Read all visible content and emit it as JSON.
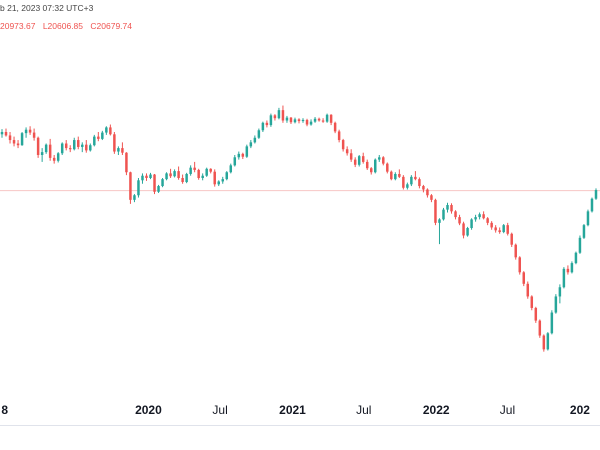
{
  "header": {
    "time_label": "b 21, 2023 07:32 UTC+3",
    "values": [
      "20973.67",
      "L20606.85",
      "C20679.74"
    ]
  },
  "colors": {
    "up": "#26a69a",
    "down": "#ef5350",
    "price_line": "#f7c6c5",
    "axis_text": "#131722",
    "background": "#ffffff"
  },
  "chart_data": {
    "type": "candlestick",
    "title": "",
    "xlabel": "",
    "ylabel": "",
    "x_ticks": [
      {
        "label": "8",
        "date": "2019-01-01",
        "bold": true
      },
      {
        "label": "2020",
        "date": "2020-01-01",
        "bold": true
      },
      {
        "label": "Jul",
        "date": "2020-07-01",
        "bold": false
      },
      {
        "label": "2021",
        "date": "2021-01-01",
        "bold": true
      },
      {
        "label": "Jul",
        "date": "2021-07-01",
        "bold": false
      },
      {
        "label": "2022",
        "date": "2022-01-01",
        "bold": true
      },
      {
        "label": "Jul",
        "date": "2022-07-01",
        "bold": false
      },
      {
        "label": "202",
        "date": "2023-01-01",
        "bold": true
      }
    ],
    "price_line": 20679.74,
    "ylim": [
      17300,
      23300
    ],
    "grid": false,
    "series": [
      {
        "values": [
          [
            21660,
            21750,
            21600,
            21700
          ],
          [
            21700,
            21760,
            21620,
            21640
          ],
          [
            21640,
            21700,
            21500,
            21560
          ],
          [
            21560,
            21620,
            21450,
            21500
          ],
          [
            21500,
            21560,
            21420,
            21470
          ],
          [
            21470,
            21700,
            21460,
            21680
          ],
          [
            21680,
            21780,
            21600,
            21740
          ],
          [
            21740,
            21800,
            21650,
            21690
          ],
          [
            21690,
            21760,
            21550,
            21600
          ],
          [
            21600,
            21620,
            21250,
            21300
          ],
          [
            21300,
            21420,
            21180,
            21350
          ],
          [
            21350,
            21500,
            21320,
            21480
          ],
          [
            21480,
            21580,
            21200,
            21250
          ],
          [
            21250,
            21300,
            21150,
            21200
          ],
          [
            21200,
            21350,
            21170,
            21330
          ],
          [
            21330,
            21520,
            21300,
            21500
          ],
          [
            21500,
            21560,
            21380,
            21420
          ],
          [
            21420,
            21470,
            21350,
            21400
          ],
          [
            21400,
            21600,
            21380,
            21560
          ],
          [
            21560,
            21620,
            21400,
            21440
          ],
          [
            21440,
            21520,
            21350,
            21480
          ],
          [
            21480,
            21560,
            21340,
            21380
          ],
          [
            21380,
            21500,
            21360,
            21470
          ],
          [
            21470,
            21650,
            21450,
            21620
          ],
          [
            21620,
            21700,
            21540,
            21580
          ],
          [
            21580,
            21720,
            21560,
            21690
          ],
          [
            21690,
            21800,
            21650,
            21780
          ],
          [
            21780,
            21830,
            21640,
            21660
          ],
          [
            21660,
            21700,
            21320,
            21360
          ],
          [
            21360,
            21450,
            21300,
            21420
          ],
          [
            21420,
            21520,
            21300,
            21340
          ],
          [
            21340,
            21350,
            20950,
            21000
          ],
          [
            21000,
            21010,
            20450,
            20520
          ],
          [
            20520,
            20620,
            20480,
            20600
          ],
          [
            20600,
            20900,
            20560,
            20860
          ],
          [
            20860,
            20980,
            20800,
            20940
          ],
          [
            20940,
            20980,
            20850,
            20900
          ],
          [
            20900,
            20990,
            20880,
            20960
          ],
          [
            20960,
            20970,
            20620,
            20660
          ],
          [
            20660,
            20780,
            20640,
            20760
          ],
          [
            20760,
            20900,
            20740,
            20880
          ],
          [
            20880,
            21000,
            20860,
            20980
          ],
          [
            20980,
            21060,
            20900,
            20930
          ],
          [
            20930,
            21050,
            20910,
            21020
          ],
          [
            21020,
            21100,
            20870,
            20900
          ],
          [
            20900,
            20960,
            20800,
            20830
          ],
          [
            20830,
            20990,
            20810,
            20970
          ],
          [
            20970,
            21120,
            20940,
            21080
          ],
          [
            21080,
            21180,
            21000,
            21040
          ],
          [
            21040,
            21060,
            20870,
            20900
          ],
          [
            20900,
            20980,
            20860,
            20940
          ],
          [
            20940,
            21080,
            20920,
            21060
          ],
          [
            21060,
            21070,
            20980,
            21010
          ],
          [
            21010,
            21050,
            20750,
            20790
          ],
          [
            20790,
            20860,
            20760,
            20840
          ],
          [
            20840,
            20920,
            20800,
            20880
          ],
          [
            20880,
            21020,
            20860,
            21000
          ],
          [
            21000,
            21150,
            20980,
            21120
          ],
          [
            21120,
            21300,
            21100,
            21260
          ],
          [
            21260,
            21360,
            21220,
            21320
          ],
          [
            21320,
            21340,
            21230,
            21270
          ],
          [
            21270,
            21480,
            21250,
            21450
          ],
          [
            21450,
            21560,
            21420,
            21520
          ],
          [
            21520,
            21640,
            21500,
            21600
          ],
          [
            21600,
            21760,
            21580,
            21730
          ],
          [
            21730,
            21880,
            21700,
            21860
          ],
          [
            21860,
            21900,
            21780,
            21820
          ],
          [
            21820,
            22020,
            21790,
            21990
          ],
          [
            21990,
            22010,
            21900,
            21940
          ],
          [
            21940,
            22120,
            21920,
            22080
          ],
          [
            22080,
            22160,
            21860,
            21900
          ],
          [
            21900,
            21980,
            21860,
            21950
          ],
          [
            21950,
            21960,
            21840,
            21870
          ],
          [
            21870,
            21950,
            21850,
            21920
          ],
          [
            21920,
            21940,
            21850,
            21890
          ],
          [
            21890,
            21940,
            21860,
            21910
          ],
          [
            21910,
            21930,
            21800,
            21830
          ],
          [
            21830,
            21920,
            21810,
            21880
          ],
          [
            21880,
            21960,
            21860,
            21930
          ],
          [
            21930,
            21950,
            21880,
            21900
          ],
          [
            21900,
            21940,
            21860,
            21880
          ],
          [
            21880,
            22020,
            21860,
            22000
          ],
          [
            22000,
            22010,
            21820,
            21860
          ],
          [
            21860,
            21880,
            21680,
            21710
          ],
          [
            21710,
            21740,
            21520,
            21560
          ],
          [
            21560,
            21580,
            21360,
            21400
          ],
          [
            21400,
            21450,
            21290,
            21330
          ],
          [
            21330,
            21400,
            21180,
            21220
          ],
          [
            21220,
            21260,
            21090,
            21130
          ],
          [
            21130,
            21300,
            21100,
            21280
          ],
          [
            21280,
            21340,
            21150,
            21180
          ],
          [
            21180,
            21220,
            21040,
            21070
          ],
          [
            21070,
            21090,
            20960,
            21000
          ],
          [
            21000,
            21240,
            20980,
            21220
          ],
          [
            21220,
            21300,
            21180,
            21260
          ],
          [
            21260,
            21280,
            21120,
            21150
          ],
          [
            21150,
            21170,
            20980,
            21010
          ],
          [
            21010,
            21030,
            20860,
            20880
          ],
          [
            20880,
            21000,
            20860,
            20970
          ],
          [
            20970,
            21050,
            20900,
            20920
          ],
          [
            20920,
            20950,
            20700,
            20730
          ],
          [
            20730,
            20820,
            20700,
            20790
          ],
          [
            20790,
            20950,
            20760,
            20920
          ],
          [
            20920,
            21020,
            20860,
            20880
          ],
          [
            20880,
            20910,
            20720,
            20760
          ],
          [
            20760,
            20780,
            20650,
            20700
          ],
          [
            20700,
            20720,
            20560,
            20600
          ],
          [
            20600,
            20620,
            20480,
            20520
          ],
          [
            20520,
            20540,
            20080,
            20120
          ],
          [
            20120,
            20200,
            19750,
            20180
          ],
          [
            20180,
            20380,
            20160,
            20350
          ],
          [
            20350,
            20470,
            20300,
            20430
          ],
          [
            20430,
            20460,
            20280,
            20320
          ],
          [
            20320,
            20340,
            20180,
            20220
          ],
          [
            20220,
            20260,
            20080,
            20110
          ],
          [
            20110,
            20140,
            19850,
            19900
          ],
          [
            19900,
            20050,
            19880,
            20030
          ],
          [
            20030,
            20200,
            20000,
            20180
          ],
          [
            20180,
            20260,
            20140,
            20220
          ],
          [
            20220,
            20300,
            20180,
            20270
          ],
          [
            20270,
            20320,
            20180,
            20200
          ],
          [
            20200,
            20220,
            20080,
            20120
          ],
          [
            20120,
            20150,
            20000,
            20040
          ],
          [
            20040,
            20080,
            19950,
            19990
          ],
          [
            19990,
            20040,
            19930,
            19960
          ],
          [
            19960,
            20100,
            19940,
            20080
          ],
          [
            20080,
            20120,
            19900,
            19930
          ],
          [
            19930,
            19950,
            19700,
            19740
          ],
          [
            19740,
            19760,
            19480,
            19520
          ],
          [
            19520,
            19540,
            19220,
            19260
          ],
          [
            19260,
            19280,
            19020,
            19060
          ],
          [
            19060,
            19100,
            18800,
            18840
          ],
          [
            18840,
            18860,
            18600,
            18640
          ],
          [
            18640,
            18660,
            18380,
            18420
          ],
          [
            18420,
            18440,
            18120,
            18160
          ],
          [
            18160,
            18180,
            17880,
            17920
          ],
          [
            17920,
            18220,
            17900,
            18200
          ],
          [
            18200,
            18600,
            18180,
            18560
          ],
          [
            18560,
            18880,
            18540,
            18840
          ],
          [
            18840,
            19050,
            18720,
            19000
          ],
          [
            19000,
            19350,
            18980,
            19320
          ],
          [
            19320,
            19380,
            19220,
            19260
          ],
          [
            19260,
            19450,
            19240,
            19420
          ],
          [
            19420,
            19620,
            19400,
            19600
          ],
          [
            19600,
            19900,
            19580,
            19860
          ],
          [
            19860,
            20100,
            19840,
            20080
          ],
          [
            20080,
            20350,
            20060,
            20320
          ],
          [
            20320,
            20560,
            20300,
            20540
          ],
          [
            20540,
            20720,
            20520,
            20690
          ]
        ]
      }
    ]
  }
}
